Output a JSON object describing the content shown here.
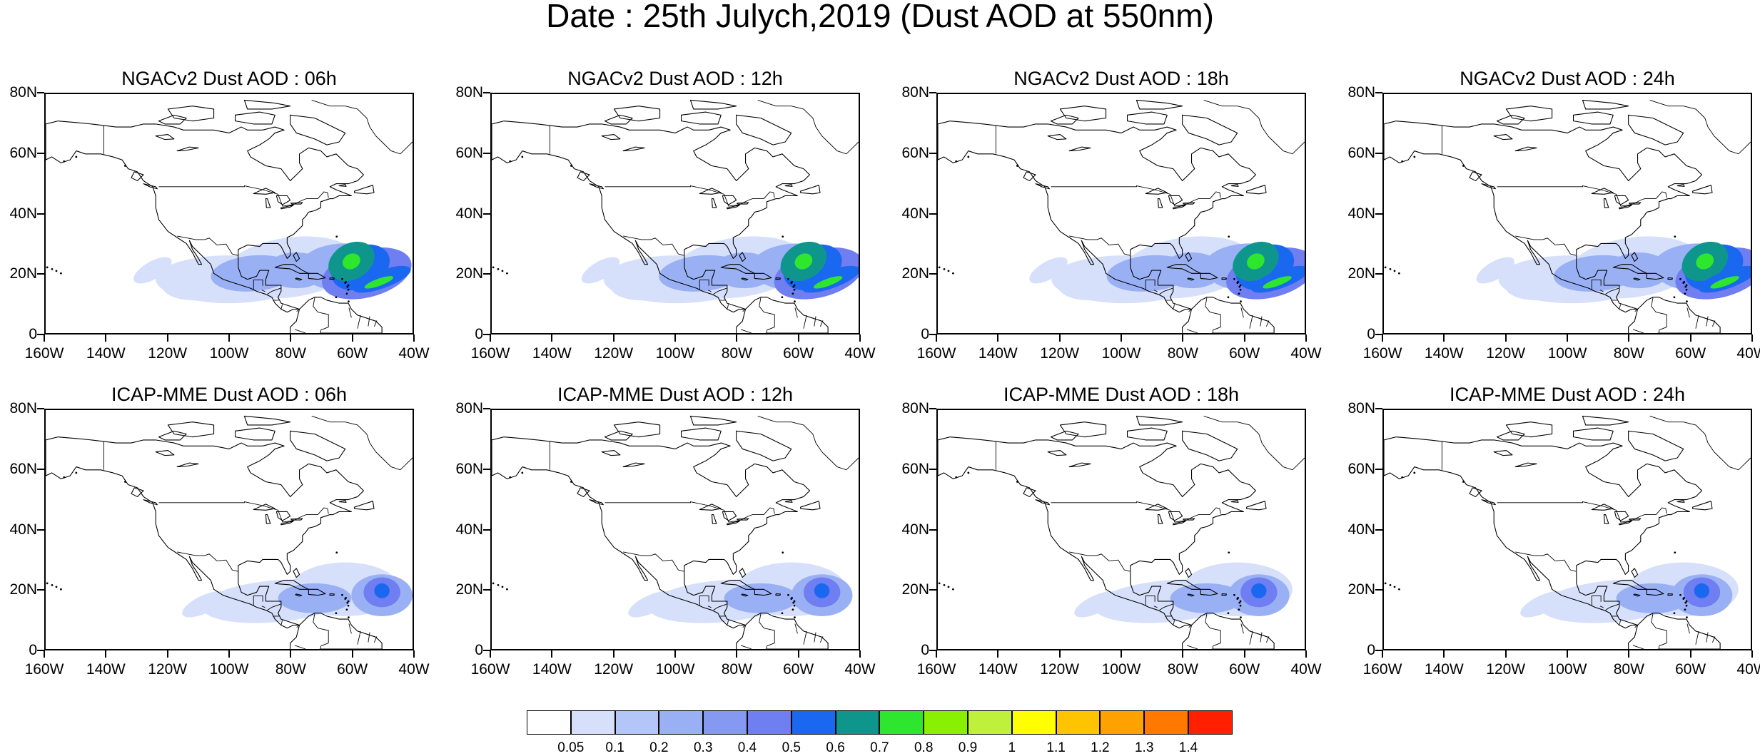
{
  "title": "Date : 25th Julych,2019 (Dust AOD at 550nm)",
  "map": {
    "lon_range": [
      -160,
      -40
    ],
    "lat_range": [
      0,
      80
    ],
    "x_ticks": [
      "160W",
      "140W",
      "120W",
      "100W",
      "80W",
      "60W",
      "40W"
    ],
    "y_ticks": [
      "80N",
      "60N",
      "40N",
      "20N",
      "0"
    ]
  },
  "panels": [
    {
      "title": "NGACv2 Dust AOD : 06h",
      "model": "NGACv2",
      "hour": "06h"
    },
    {
      "title": "NGACv2 Dust AOD : 12h",
      "model": "NGACv2",
      "hour": "12h"
    },
    {
      "title": "NGACv2 Dust AOD : 18h",
      "model": "NGACv2",
      "hour": "18h"
    },
    {
      "title": "NGACv2 Dust AOD : 24h",
      "model": "NGACv2",
      "hour": "24h"
    },
    {
      "title": "ICAP-MME Dust AOD : 06h",
      "model": "ICAP-MME",
      "hour": "06h"
    },
    {
      "title": "ICAP-MME Dust AOD : 12h",
      "model": "ICAP-MME",
      "hour": "12h"
    },
    {
      "title": "ICAP-MME Dust AOD : 18h",
      "model": "ICAP-MME",
      "hour": "18h"
    },
    {
      "title": "ICAP-MME Dust AOD : 24h",
      "model": "ICAP-MME",
      "hour": "24h"
    }
  ],
  "colorbar": {
    "labels": [
      "0.05",
      "0.1",
      "0.2",
      "0.3",
      "0.4",
      "0.5",
      "0.6",
      "0.7",
      "0.8",
      "0.9",
      "1",
      "1.1",
      "1.2",
      "1.3",
      "1.4"
    ],
    "colors": [
      "#ffffff",
      "#d6e0fa",
      "#b4c6f7",
      "#9ab0f5",
      "#8598f2",
      "#6f7ef0",
      "#1b68f0",
      "#0f968c",
      "#2ee62e",
      "#88f000",
      "#bff03c",
      "#ffff00",
      "#ffc400",
      "#ffa200",
      "#ff7800",
      "#ff2000"
    ]
  },
  "colors": {
    "aod_low": "#d6e0fa",
    "aod_mid": "#9ab0f5",
    "aod_high": "#6f7ef0",
    "aod_blue": "#1b68f0",
    "aod_teal": "#0f968c",
    "aod_green": "#2ee62e"
  }
}
